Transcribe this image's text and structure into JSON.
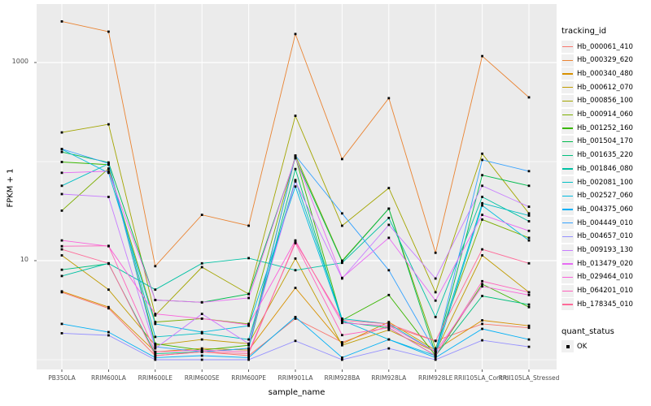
{
  "chart_data": {
    "type": "line",
    "title": "",
    "xlabel": "sample_name",
    "ylabel": "FPKM + 1",
    "yscale": "log10",
    "ylim": [
      0.85,
      3500
    ],
    "y_tick_labels": [
      "1000",
      "10"
    ],
    "y_tick_values": [
      1000,
      10
    ],
    "y_gridlines_major": [
      10,
      1000
    ],
    "y_gridlines_minor": [
      1,
      100
    ],
    "grid": "on",
    "panel_bg": "#EBEBEB",
    "grid_color": "#FFFFFF",
    "point_marker": "black-square",
    "categories": [
      "PB350LA",
      "RRIM600LA",
      "RRIM600LE",
      "RRIM600SE",
      "RRIM600PE",
      "RRIM901LA",
      "RRIM928BA",
      "RRIM928LA",
      "RRIM928LE",
      "RRII105LA_Control",
      "RRII105LA_Stressed"
    ],
    "legend": {
      "title": "tracking_id",
      "position": "right"
    },
    "legend2": {
      "title": "quant_status",
      "items": [
        {
          "label": "OK",
          "marker": "black-square"
        }
      ]
    },
    "series": [
      {
        "name": "Hb_000061_410",
        "color": "#F8766D",
        "values": [
          4.8,
          3.3,
          1.1,
          1.2,
          1.1,
          2.6,
          1.5,
          2.2,
          1.55,
          2.3,
          2.1
        ]
      },
      {
        "name": "Hb_000329_620",
        "color": "#EA8331",
        "values": [
          2600,
          2050,
          8.8,
          29,
          22.5,
          1940,
          106,
          437,
          12,
          1160,
          445
        ]
      },
      {
        "name": "Hb_000340_480",
        "color": "#D89000",
        "values": [
          4.9,
          3.4,
          1.2,
          1.3,
          1.25,
          5.3,
          1.45,
          2.4,
          1.25,
          2.5,
          2.2
        ]
      },
      {
        "name": "Hb_000612_070",
        "color": "#C09B00",
        "values": [
          11.3,
          5.1,
          1.4,
          1.6,
          1.45,
          10.5,
          1.4,
          2.0,
          1.2,
          11.3,
          4.8
        ]
      },
      {
        "name": "Hb_000856_100",
        "color": "#A3A500",
        "values": [
          197,
          238,
          2.8,
          8.6,
          4.6,
          290,
          22.5,
          54,
          4.8,
          120,
          30
        ]
      },
      {
        "name": "Hb_000914_060",
        "color": "#7CAE00",
        "values": [
          32,
          85,
          2.4,
          2.6,
          2.3,
          115,
          10,
          33.5,
          1.3,
          26,
          17
        ]
      },
      {
        "name": "Hb_001252_160",
        "color": "#39B600",
        "values": [
          99,
          93,
          1.45,
          1.25,
          1.4,
          112,
          2.5,
          4.5,
          1.1,
          5.8,
          3.4
        ]
      },
      {
        "name": "Hb_001504_170",
        "color": "#00BB4E",
        "values": [
          125,
          98,
          4.0,
          3.8,
          4.6,
          108,
          9.8,
          33.5,
          1.15,
          73,
          57
        ]
      },
      {
        "name": "Hb_001635_220",
        "color": "#00BF7D",
        "values": [
          8.1,
          9.3,
          1.15,
          1.2,
          1.3,
          84,
          2.4,
          2.1,
          1.1,
          4.4,
          3.6
        ]
      },
      {
        "name": "Hb_001846_080",
        "color": "#00C1A3",
        "values": [
          7.0,
          9.4,
          5.1,
          9.4,
          10.6,
          8.0,
          9.5,
          27,
          2.7,
          44,
          25
        ]
      },
      {
        "name": "Hb_002081_100",
        "color": "#00BFC4",
        "values": [
          57,
          95,
          1.7,
          1.85,
          1.6,
          65,
          2.6,
          2.3,
          1.2,
          38,
          28.5
        ]
      },
      {
        "name": "Hb_002527_060",
        "color": "#00BAE0",
        "values": [
          133,
          77,
          2.3,
          1.9,
          2.2,
          56,
          2.5,
          1.6,
          1.1,
          36,
          16
        ]
      },
      {
        "name": "Hb_004375_060",
        "color": "#00B0F6",
        "values": [
          2.3,
          1.9,
          1.05,
          1.1,
          1.05,
          2.7,
          1.05,
          1.6,
          1.05,
          2.05,
          1.6
        ]
      },
      {
        "name": "Hb_004449_010",
        "color": "#35A2FF",
        "values": [
          134,
          96,
          1.35,
          1.2,
          1.3,
          115,
          30,
          8.0,
          1.2,
          104,
          80
        ]
      },
      {
        "name": "Hb_004657_010",
        "color": "#9590FF",
        "values": [
          1.85,
          1.76,
          1.0,
          1.0,
          1.0,
          1.55,
          1.0,
          1.3,
          1.0,
          1.57,
          1.35
        ]
      },
      {
        "name": "Hb_009193_130",
        "color": "#C77CFF",
        "values": [
          47,
          44,
          1.3,
          2.9,
          1.45,
          63,
          6.6,
          23,
          6.6,
          57,
          35
        ]
      },
      {
        "name": "Hb_013479_020",
        "color": "#E76BF3",
        "values": [
          77,
          80,
          4.0,
          3.8,
          4.2,
          110,
          6.7,
          17,
          3.95,
          29,
          20
        ]
      },
      {
        "name": "Hb_029464_010",
        "color": "#FA62DB",
        "values": [
          16,
          14,
          2.9,
          2.6,
          2.25,
          16,
          2.35,
          2.2,
          1.2,
          5.5,
          4.5
        ]
      },
      {
        "name": "Hb_064201_010",
        "color": "#FF62BC",
        "values": [
          14,
          14.1,
          1.2,
          1.25,
          1.2,
          15,
          1.77,
          2.1,
          1.1,
          6.2,
          4.8
        ]
      },
      {
        "name": "Hb_178345_010",
        "color": "#FF6A98",
        "values": [
          13,
          9.4,
          1.1,
          1.2,
          1.15,
          15.5,
          2.5,
          2.3,
          1.55,
          13,
          9.4
        ]
      }
    ]
  }
}
